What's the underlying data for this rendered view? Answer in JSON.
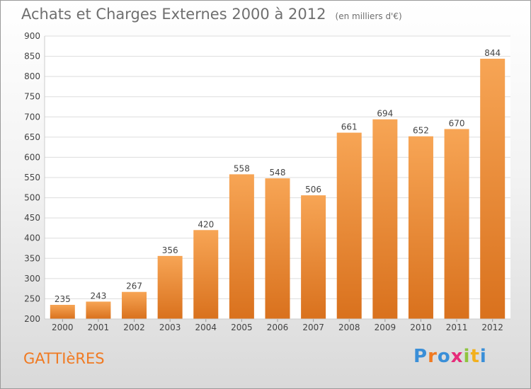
{
  "title": "Achats et Charges Externes 2000 à 2012",
  "unit": "(en milliers d'€)",
  "commune": "GATTIèRES",
  "brand": {
    "text": "Proxiti",
    "letter_colors": [
      "#3a8fd8",
      "#f07a22",
      "#3a8fd8",
      "#e62c7a",
      "#8fc43f",
      "#f2b01e",
      "#3a8fd8"
    ]
  },
  "colors": {
    "bar_top": "#f7a555",
    "bar_bottom": "#d9711d",
    "label": "#444444",
    "grid": "#dddddd",
    "commune": "#f07a22"
  },
  "chart_data": {
    "type": "bar",
    "categories": [
      "2000",
      "2001",
      "2002",
      "2003",
      "2004",
      "2005",
      "2006",
      "2007",
      "2008",
      "2009",
      "2010",
      "2011",
      "2012"
    ],
    "values": [
      235,
      243,
      267,
      356,
      420,
      558,
      548,
      506,
      661,
      694,
      652,
      670,
      844
    ],
    "ylim": [
      200,
      900
    ],
    "yticks": [
      200,
      250,
      300,
      350,
      400,
      450,
      500,
      550,
      600,
      650,
      700,
      750,
      800,
      850,
      900
    ],
    "grid": true
  }
}
